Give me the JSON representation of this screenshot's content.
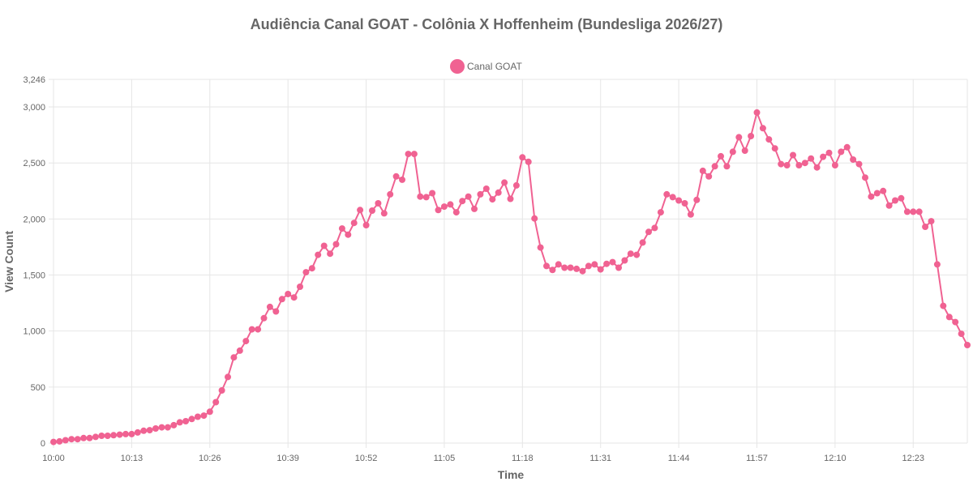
{
  "chart_data": {
    "type": "line",
    "title": "Audiência Canal GOAT - Colônia X Hoffenheim (Bundesliga 2026/27)",
    "xlabel": "Time",
    "ylabel": "View Count",
    "ylim": [
      0,
      3246
    ],
    "y_ticks": [
      "0",
      "500",
      "1,000",
      "1,500",
      "2,000",
      "2,500",
      "3,000",
      "3,246"
    ],
    "x_ticks": [
      "10:00",
      "10:13",
      "10:26",
      "10:39",
      "10:52",
      "11:05",
      "11:18",
      "11:31",
      "11:44",
      "11:57",
      "12:10",
      "12:23"
    ],
    "x_range": [
      "10:00",
      "12:32"
    ],
    "grid": true,
    "legend_position": "top-center",
    "color": "#f06292",
    "series": [
      {
        "name": "Canal GOAT",
        "x": [
          "10:00",
          "10:01",
          "10:02",
          "10:03",
          "10:04",
          "10:05",
          "10:06",
          "10:07",
          "10:08",
          "10:09",
          "10:10",
          "10:11",
          "10:12",
          "10:13",
          "10:14",
          "10:15",
          "10:16",
          "10:17",
          "10:18",
          "10:19",
          "10:20",
          "10:21",
          "10:22",
          "10:23",
          "10:24",
          "10:25",
          "10:26",
          "10:27",
          "10:28",
          "10:29",
          "10:30",
          "10:31",
          "10:32",
          "10:33",
          "10:34",
          "10:35",
          "10:36",
          "10:37",
          "10:38",
          "10:39",
          "10:40",
          "10:41",
          "10:42",
          "10:43",
          "10:44",
          "10:45",
          "10:46",
          "10:47",
          "10:48",
          "10:49",
          "10:50",
          "10:51",
          "10:52",
          "10:53",
          "10:54",
          "10:55",
          "10:56",
          "10:57",
          "10:58",
          "10:59",
          "11:00",
          "11:01",
          "11:02",
          "11:03",
          "11:04",
          "11:05",
          "11:06",
          "11:07",
          "11:08",
          "11:09",
          "11:10",
          "11:11",
          "11:12",
          "11:13",
          "11:14",
          "11:15",
          "11:16",
          "11:17",
          "11:18",
          "11:19",
          "11:20",
          "11:21",
          "11:22",
          "11:23",
          "11:24",
          "11:25",
          "11:26",
          "11:27",
          "11:28",
          "11:29",
          "11:30",
          "11:31",
          "11:32",
          "11:33",
          "11:34",
          "11:35",
          "11:36",
          "11:37",
          "11:38",
          "11:39",
          "11:40",
          "11:41",
          "11:42",
          "11:43",
          "11:44",
          "11:45",
          "11:46",
          "11:47",
          "11:48",
          "11:49",
          "11:50",
          "11:51",
          "11:52",
          "11:53",
          "11:54",
          "11:55",
          "11:56",
          "11:57",
          "11:58",
          "11:59",
          "12:00",
          "12:01",
          "12:02",
          "12:03",
          "12:04",
          "12:05",
          "12:06",
          "12:07",
          "12:08",
          "12:09",
          "12:10",
          "12:11",
          "12:12",
          "12:13",
          "12:14",
          "12:15",
          "12:16",
          "12:17",
          "12:18",
          "12:19",
          "12:20",
          "12:21",
          "12:22",
          "12:23",
          "12:24",
          "12:25",
          "12:26",
          "12:27",
          "12:28",
          "12:29",
          "12:30",
          "12:31",
          "12:32"
        ],
        "values": [
          10,
          15,
          25,
          35,
          35,
          45,
          45,
          55,
          65,
          65,
          70,
          75,
          80,
          80,
          95,
          110,
          115,
          130,
          140,
          140,
          160,
          185,
          195,
          215,
          235,
          245,
          280,
          365,
          470,
          590,
          765,
          825,
          910,
          1015,
          1015,
          1115,
          1215,
          1175,
          1285,
          1330,
          1300,
          1395,
          1525,
          1560,
          1680,
          1760,
          1690,
          1775,
          1915,
          1860,
          1965,
          2080,
          1945,
          2075,
          2140,
          2050,
          2220,
          2380,
          2350,
          2580,
          2580,
          2200,
          2195,
          2230,
          2080,
          2110,
          2130,
          2060,
          2160,
          2200,
          2090,
          2220,
          2270,
          2175,
          2235,
          2325,
          2180,
          2300,
          2550,
          2510,
          2005,
          1745,
          1580,
          1545,
          1595,
          1565,
          1565,
          1555,
          1535,
          1580,
          1595,
          1550,
          1600,
          1615,
          1565,
          1630,
          1690,
          1680,
          1790,
          1885,
          1920,
          2060,
          2220,
          2195,
          2165,
          2140,
          2040,
          2170,
          2430,
          2380,
          2470,
          2560,
          2470,
          2600,
          2730,
          2610,
          2740,
          2950,
          2810,
          2710,
          2630,
          2490,
          2480,
          2570,
          2480,
          2500,
          2540,
          2460,
          2555,
          2590,
          2480,
          2600,
          2640,
          2530,
          2490,
          2370,
          2200,
          2230,
          2250,
          2120,
          2165,
          2185,
          2065,
          2065,
          2065,
          1930,
          1980,
          1595,
          1225,
          1125,
          1080,
          975,
          875
        ]
      }
    ]
  }
}
